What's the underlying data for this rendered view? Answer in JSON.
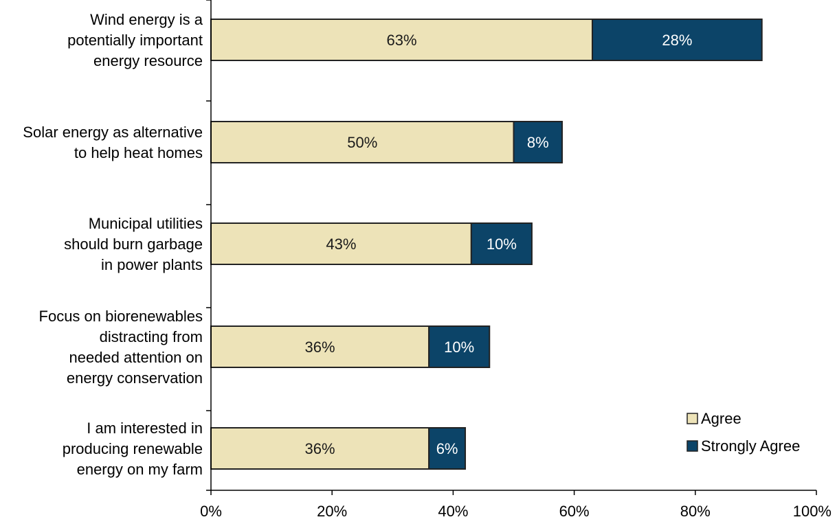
{
  "chart_data": {
    "type": "bar",
    "orientation": "horizontal",
    "stacked": true,
    "categories": [
      [
        "Wind energy is a",
        "potentially important",
        "energy resource"
      ],
      [
        "Solar energy as alternative",
        "to help heat homes"
      ],
      [
        "Municipal utilities",
        "should burn garbage",
        "in power plants"
      ],
      [
        "Focus on biorenewables",
        "distracting from",
        "needed attention on",
        "energy conservation"
      ],
      [
        "I am interested in",
        "producing renewable",
        "energy on my farm"
      ]
    ],
    "series": [
      {
        "name": "Agree",
        "color": "#ede3b8",
        "text_color": "#1a1a1a",
        "values": [
          63,
          50,
          43,
          36,
          36
        ],
        "labels": [
          "63%",
          "50%",
          "43%",
          "36%",
          "36%"
        ]
      },
      {
        "name": "Strongly Agree",
        "color": "#0c4468",
        "text_color": "#ffffff",
        "values": [
          28,
          8,
          10,
          10,
          6
        ],
        "labels": [
          "28%",
          "8%",
          "10%",
          "10%",
          "6%"
        ]
      }
    ],
    "xlim": [
      0,
      100
    ],
    "xticks": [
      0,
      20,
      40,
      60,
      80,
      100
    ],
    "xtick_labels": [
      "0%",
      "20%",
      "40%",
      "60%",
      "80%",
      "100%"
    ],
    "grid": false,
    "legend_position": "bottom-right",
    "title": "",
    "xlabel": "",
    "ylabel": ""
  }
}
